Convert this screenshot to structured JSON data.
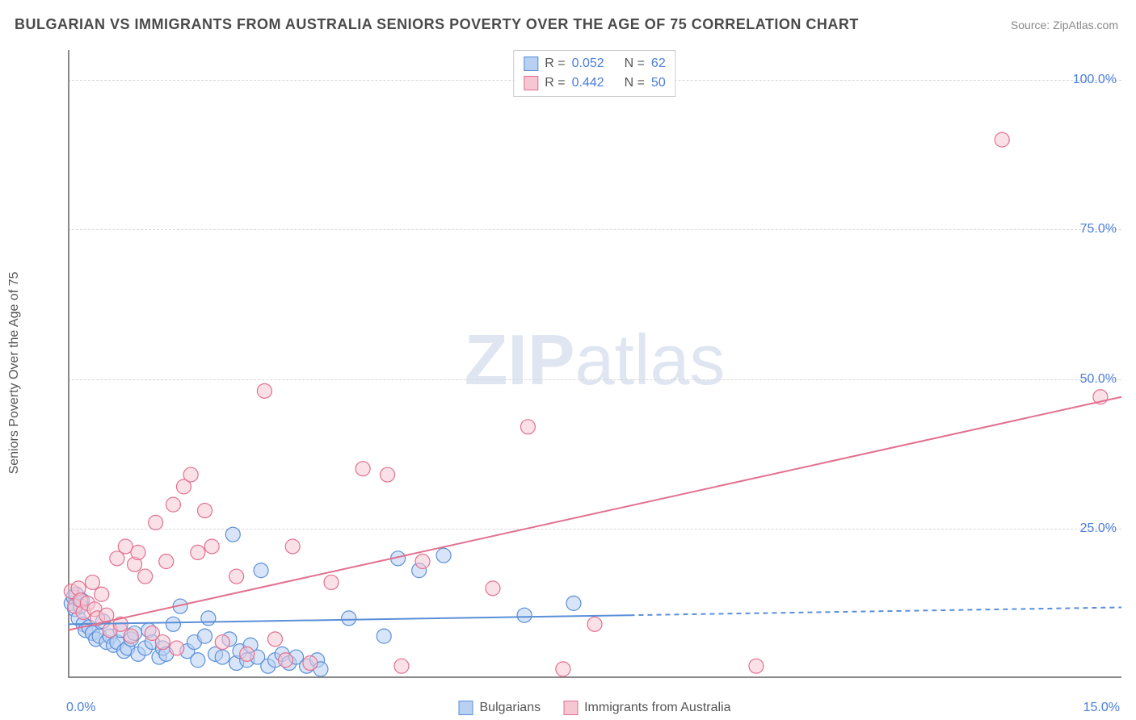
{
  "title": "BULGARIAN VS IMMIGRANTS FROM AUSTRALIA SENIORS POVERTY OVER THE AGE OF 75 CORRELATION CHART",
  "source": "Source: ZipAtlas.com",
  "y_axis_label": "Seniors Poverty Over the Age of 75",
  "watermark_a": "ZIP",
  "watermark_b": "atlas",
  "chart": {
    "type": "scatter",
    "background_color": "#ffffff",
    "grid_color": "#d8d8d8",
    "axis_color": "#888888",
    "xlim": [
      0.0,
      15.0
    ],
    "ylim": [
      0.0,
      105.0
    ],
    "x_ticks": [
      {
        "v": 0.0,
        "label": "0.0%"
      },
      {
        "v": 15.0,
        "label": "15.0%"
      }
    ],
    "y_ticks": [
      {
        "v": 25.0,
        "label": "25.0%"
      },
      {
        "v": 50.0,
        "label": "50.0%"
      },
      {
        "v": 75.0,
        "label": "75.0%"
      },
      {
        "v": 100.0,
        "label": "100.0%"
      }
    ],
    "point_radius": 9,
    "point_opacity": 0.55,
    "series": [
      {
        "name": "Bulgarians",
        "color_fill": "#b8d0f2",
        "color_stroke": "#5a8fd8",
        "R": 0.052,
        "N": 62,
        "trend": {
          "x0": 0.0,
          "y0": 9.0,
          "x1": 8.0,
          "y1": 10.5,
          "solid_until_x": 8.0,
          "extend_to_x": 15.0,
          "width": 2
        },
        "points": [
          [
            0.05,
            12.5
          ],
          [
            0.08,
            13.5
          ],
          [
            0.1,
            11.5
          ],
          [
            0.12,
            14.0
          ],
          [
            0.15,
            10.0
          ],
          [
            0.18,
            12.0
          ],
          [
            0.2,
            13.0
          ],
          [
            0.22,
            9.0
          ],
          [
            0.25,
            8.0
          ],
          [
            0.3,
            8.5
          ],
          [
            0.35,
            7.5
          ],
          [
            0.4,
            6.5
          ],
          [
            0.45,
            7.0
          ],
          [
            0.5,
            9.5
          ],
          [
            0.55,
            6.0
          ],
          [
            0.6,
            7.0
          ],
          [
            0.65,
            5.5
          ],
          [
            0.7,
            6.0
          ],
          [
            0.75,
            8.0
          ],
          [
            0.8,
            4.5
          ],
          [
            0.85,
            5.0
          ],
          [
            0.9,
            6.5
          ],
          [
            0.95,
            7.5
          ],
          [
            1.0,
            4.0
          ],
          [
            1.1,
            5.0
          ],
          [
            1.15,
            8.0
          ],
          [
            1.2,
            6.0
          ],
          [
            1.3,
            3.5
          ],
          [
            1.35,
            5.0
          ],
          [
            1.4,
            4.0
          ],
          [
            1.5,
            9.0
          ],
          [
            1.6,
            12.0
          ],
          [
            1.7,
            4.5
          ],
          [
            1.8,
            6.0
          ],
          [
            1.85,
            3.0
          ],
          [
            1.95,
            7.0
          ],
          [
            2.0,
            10.0
          ],
          [
            2.1,
            4.0
          ],
          [
            2.2,
            3.5
          ],
          [
            2.3,
            6.5
          ],
          [
            2.35,
            24.0
          ],
          [
            2.4,
            2.5
          ],
          [
            2.45,
            4.5
          ],
          [
            2.55,
            3.0
          ],
          [
            2.6,
            5.5
          ],
          [
            2.7,
            3.5
          ],
          [
            2.75,
            18.0
          ],
          [
            2.85,
            2.0
          ],
          [
            2.95,
            3.0
          ],
          [
            3.05,
            4.0
          ],
          [
            3.15,
            2.5
          ],
          [
            3.25,
            3.5
          ],
          [
            3.4,
            2.0
          ],
          [
            3.55,
            3.0
          ],
          [
            3.6,
            1.5
          ],
          [
            4.0,
            10.0
          ],
          [
            4.5,
            7.0
          ],
          [
            4.7,
            20.0
          ],
          [
            5.0,
            18.0
          ],
          [
            5.35,
            20.5
          ],
          [
            6.5,
            10.5
          ],
          [
            7.2,
            12.5
          ]
        ]
      },
      {
        "name": "Immigrants from Australia",
        "color_fill": "#f6c6d3",
        "color_stroke": "#e2718f",
        "R": 0.442,
        "N": 50,
        "trend": {
          "x0": 0.0,
          "y0": 8.0,
          "x1": 15.0,
          "y1": 47.0,
          "solid_until_x": 15.0,
          "extend_to_x": 15.0,
          "width": 2
        },
        "points": [
          [
            0.05,
            14.5
          ],
          [
            0.1,
            12.0
          ],
          [
            0.15,
            15.0
          ],
          [
            0.18,
            13.0
          ],
          [
            0.22,
            11.0
          ],
          [
            0.28,
            12.5
          ],
          [
            0.35,
            16.0
          ],
          [
            0.38,
            11.5
          ],
          [
            0.42,
            10.0
          ],
          [
            0.48,
            14.0
          ],
          [
            0.55,
            10.5
          ],
          [
            0.6,
            8.0
          ],
          [
            0.7,
            20.0
          ],
          [
            0.75,
            9.0
          ],
          [
            0.82,
            22.0
          ],
          [
            0.9,
            7.0
          ],
          [
            0.95,
            19.0
          ],
          [
            1.0,
            21.0
          ],
          [
            1.1,
            17.0
          ],
          [
            1.2,
            7.5
          ],
          [
            1.25,
            26.0
          ],
          [
            1.35,
            6.0
          ],
          [
            1.4,
            19.5
          ],
          [
            1.5,
            29.0
          ],
          [
            1.55,
            5.0
          ],
          [
            1.65,
            32.0
          ],
          [
            1.75,
            34.0
          ],
          [
            1.85,
            21.0
          ],
          [
            1.95,
            28.0
          ],
          [
            2.05,
            22.0
          ],
          [
            2.2,
            6.0
          ],
          [
            2.4,
            17.0
          ],
          [
            2.55,
            4.0
          ],
          [
            2.8,
            48.0
          ],
          [
            2.95,
            6.5
          ],
          [
            3.1,
            3.0
          ],
          [
            3.2,
            22.0
          ],
          [
            3.45,
            2.5
          ],
          [
            3.75,
            16.0
          ],
          [
            4.2,
            35.0
          ],
          [
            4.55,
            34.0
          ],
          [
            4.75,
            2.0
          ],
          [
            5.05,
            19.5
          ],
          [
            6.05,
            15.0
          ],
          [
            6.55,
            42.0
          ],
          [
            7.05,
            1.5
          ],
          [
            7.5,
            9.0
          ],
          [
            9.8,
            2.0
          ],
          [
            13.3,
            90.0
          ],
          [
            14.7,
            47.0
          ]
        ]
      }
    ],
    "legend_top": [
      {
        "series": 0,
        "R_label": "R =",
        "N_label": "N ="
      },
      {
        "series": 1,
        "R_label": "R =",
        "N_label": "N ="
      }
    ]
  }
}
